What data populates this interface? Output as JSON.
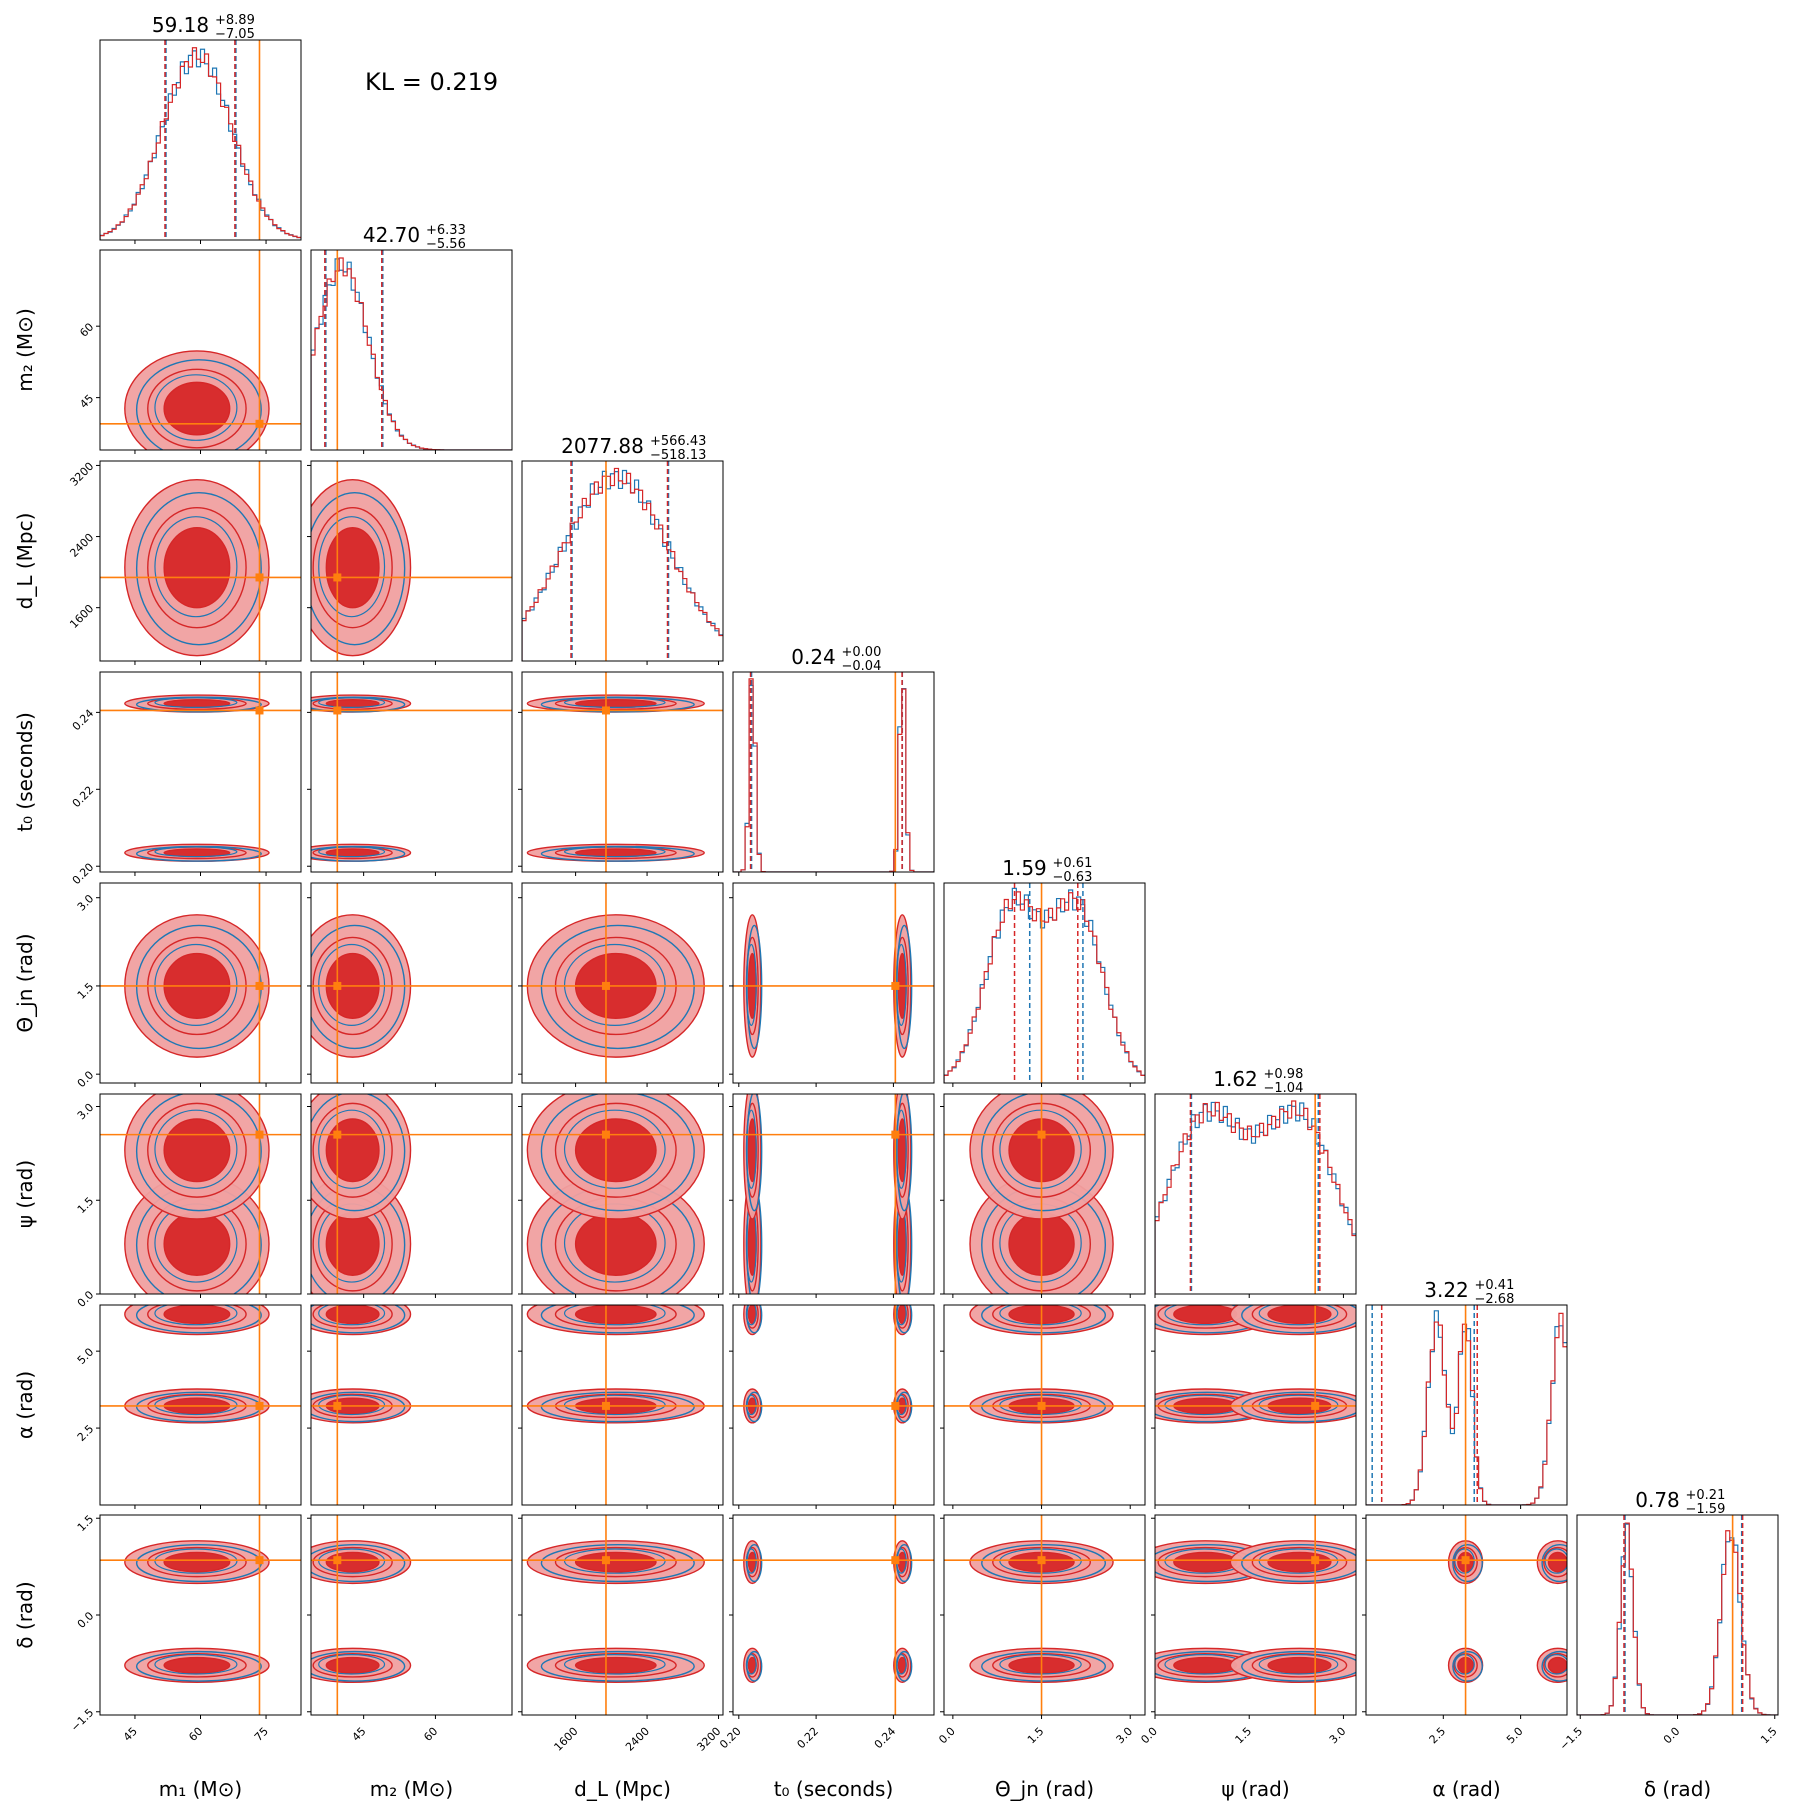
{
  "annotation": "KL = 0.219",
  "colors": {
    "series_blue": "#1f77b4",
    "series_red": "#d62728",
    "series_red_fill": "#f0a0a0",
    "truth": "#ff7f0e",
    "axis": "#000000"
  },
  "chart_data": {
    "type": "corner",
    "parameters": [
      {
        "key": "m1",
        "label": "m₁ (M⊙)",
        "title_value": "59.18",
        "title_plus": "+8.89",
        "title_minus": "−7.05",
        "range": [
          37,
          83
        ],
        "ticks": [
          45,
          60,
          75
        ],
        "tick_labels": [
          "45",
          "60",
          "75"
        ],
        "truth": 73.5,
        "quantiles": [
          52.1,
          68.1
        ],
        "quantiles_red": [
          52.1,
          68.1
        ],
        "peaks": [
          [
            59.18,
            8.0
          ]
        ],
        "clusters": [
          [
            59.18,
            7.5
          ]
        ]
      },
      {
        "key": "m2",
        "label": "m₂ (M⊙)",
        "title_value": "42.70",
        "title_plus": "+6.33",
        "title_minus": "−5.56",
        "range": [
          34,
          76
        ],
        "ticks": [
          45,
          60
        ],
        "tick_labels": [
          "45",
          "60"
        ],
        "truth": 39.5,
        "quantiles": [
          37.1,
          49.0
        ],
        "quantiles_red": [
          37.1,
          49.0
        ],
        "peaks": [
          [
            40.5,
            5.5
          ]
        ],
        "clusters": [
          [
            42.7,
            5.5
          ]
        ]
      },
      {
        "key": "dL",
        "label": "d_L (Mpc)",
        "title_value": "2077.88",
        "title_plus": "+566.43",
        "title_minus": "−518.13",
        "range": [
          1000,
          3250
        ],
        "ticks": [
          1600,
          2400,
          3200
        ],
        "tick_labels": [
          "1600",
          "2400",
          "3200"
        ],
        "truth": 1940,
        "quantiles": [
          1560,
          2640
        ],
        "quantiles_red": [
          1560,
          2640
        ],
        "peaks": [
          [
            2050,
            600
          ]
        ],
        "clusters": [
          [
            2050,
            450
          ]
        ]
      },
      {
        "key": "t0",
        "label": "t₀ (seconds)",
        "title_value": "0.24",
        "title_plus": "+0.00",
        "title_minus": "−0.04",
        "range": [
          0.1985,
          0.2505
        ],
        "ticks": [
          0.2,
          0.22,
          0.24
        ],
        "tick_labels": [
          "0.20",
          "0.22",
          "0.24"
        ],
        "truth": 0.2405,
        "quantiles": [
          0.2033,
          0.2423
        ],
        "quantiles_red": [
          0.2033,
          0.2425
        ],
        "peaks": [
          [
            0.2035,
            0.0008
          ],
          [
            0.2423,
            0.0008
          ]
        ],
        "clusters": [
          [
            0.2035,
            0.001
          ],
          [
            0.2423,
            0.001
          ]
        ]
      },
      {
        "key": "theta_jn",
        "label": "Θ_jn (rad)",
        "title_value": "1.59",
        "title_plus": "+0.61",
        "title_minus": "−0.63",
        "range": [
          -0.15,
          3.25
        ],
        "ticks": [
          0.0,
          1.5,
          3.0
        ],
        "tick_labels": [
          "0.0",
          "1.5",
          "3.0"
        ],
        "truth": 1.5,
        "quantiles": [
          1.3,
          2.2
        ],
        "quantiles_red": [
          1.06,
          2.13
        ],
        "peaks": [
          [
            1.0,
            0.45
          ],
          [
            2.1,
            0.45
          ]
        ],
        "clusters": [
          [
            1.5,
            0.55
          ]
        ]
      },
      {
        "key": "psi",
        "label": "ψ (rad)",
        "title_value": "1.62",
        "title_plus": "+0.98",
        "title_minus": "−1.04",
        "range": [
          0.0,
          3.2
        ],
        "ticks": [
          0.0,
          1.5,
          3.0
        ],
        "tick_labels": [
          "0.0",
          "1.5",
          "3.0"
        ],
        "truth": 2.55,
        "quantiles": [
          0.58,
          2.6
        ],
        "quantiles_red": [
          0.58,
          2.64
        ],
        "peaks": [
          [
            0.8,
            0.6
          ],
          [
            2.3,
            0.6
          ]
        ],
        "clusters": [
          [
            0.8,
            0.5
          ],
          [
            2.3,
            0.5
          ]
        ]
      },
      {
        "key": "alpha",
        "label": "α (rad)",
        "title_value": "3.22",
        "title_plus": "+0.41",
        "title_minus": "−2.68",
        "range": [
          0.0,
          6.5
        ],
        "ticks": [
          2.5,
          5.0
        ],
        "tick_labels": [
          "2.5",
          "5.0"
        ],
        "truth": 3.22,
        "quantiles": [
          0.2,
          3.5
        ],
        "quantiles_red": [
          0.54,
          3.63
        ],
        "peaks": [
          [
            3.22,
            0.22
          ],
          [
            2.3,
            0.3
          ],
          [
            6.3,
            0.3
          ]
        ],
        "clusters": [
          [
            3.22,
            0.25
          ],
          [
            6.2,
            0.3
          ]
        ]
      },
      {
        "key": "delta",
        "label": "δ (rad)",
        "title_value": "0.78",
        "title_plus": "+0.21",
        "title_minus": "−1.59",
        "range": [
          -1.55,
          1.55
        ],
        "ticks": [
          -1.5,
          0.0,
          1.5
        ],
        "tick_labels": [
          "−1.5",
          "0.0",
          "1.5"
        ],
        "truth": 0.85,
        "quantiles": [
          -0.81,
          0.99
        ],
        "quantiles_red": [
          -0.81,
          1.02
        ],
        "peaks": [
          [
            -0.78,
            0.1
          ],
          [
            0.82,
            0.15
          ]
        ],
        "clusters": [
          [
            -0.78,
            0.12
          ],
          [
            0.82,
            0.15
          ]
        ]
      }
    ]
  }
}
